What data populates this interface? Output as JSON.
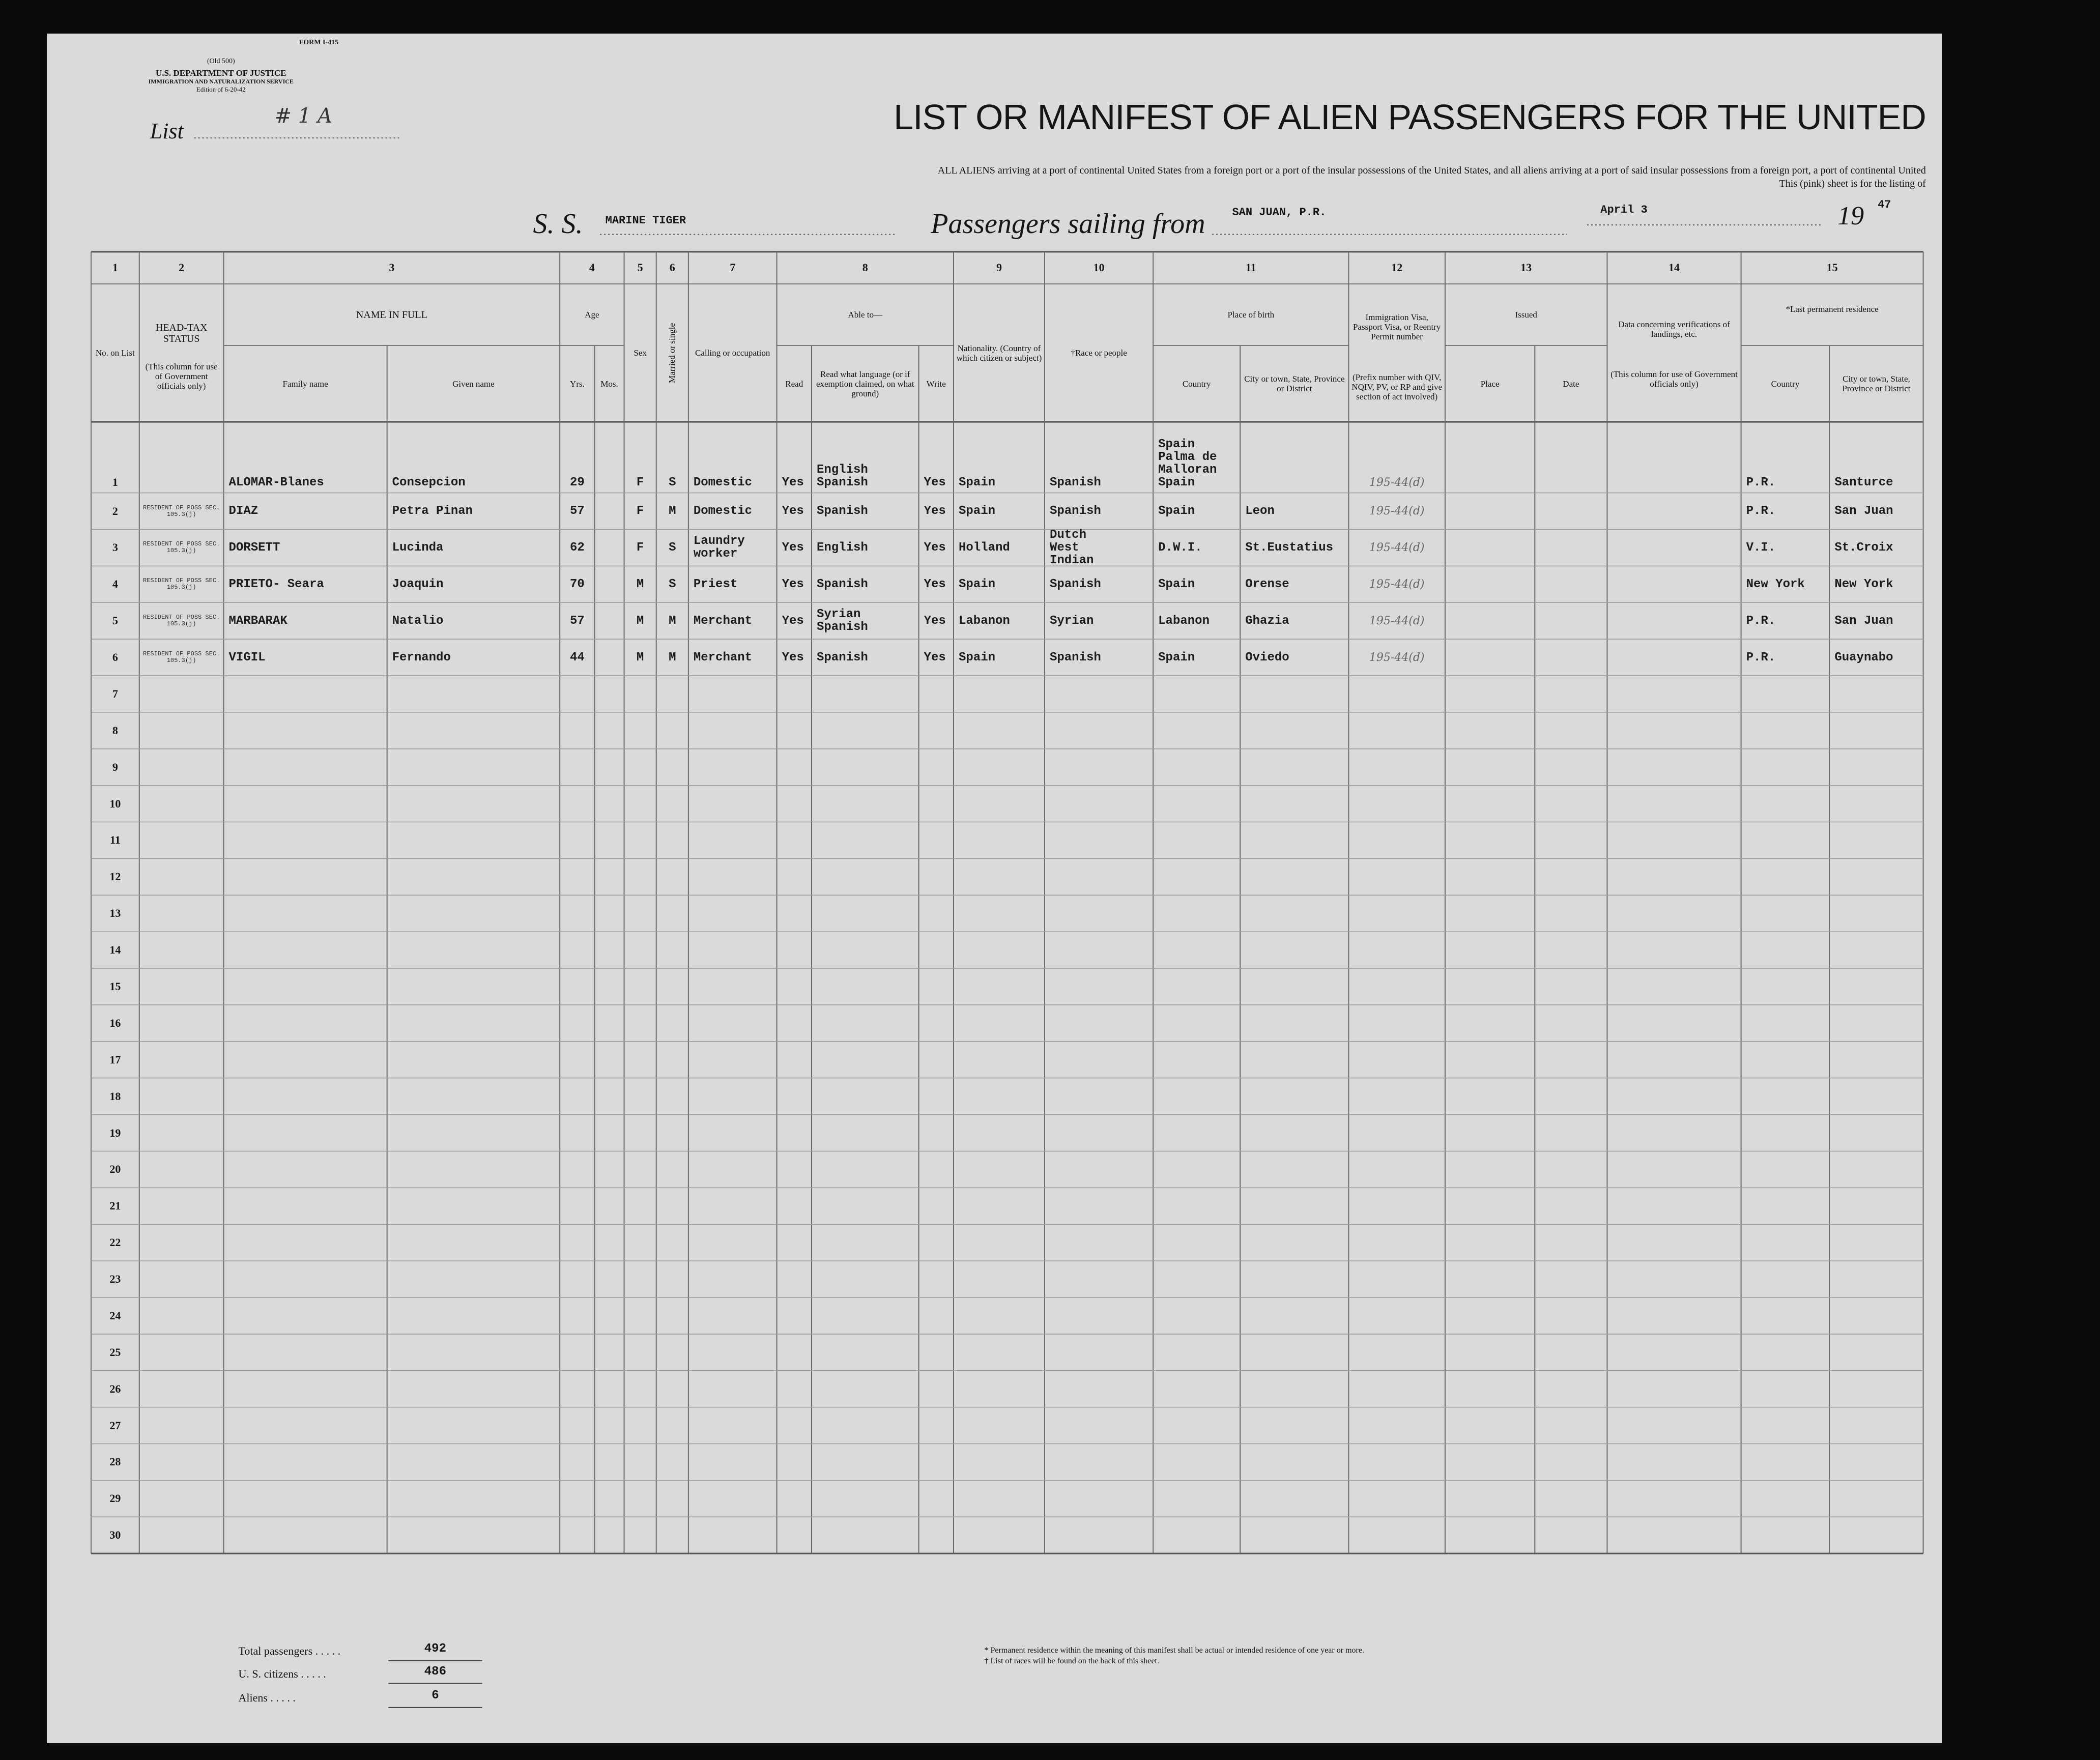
{
  "header": {
    "form_lines": [
      "FORM I-415",
      "(Old 500)",
      "U.S. DEPARTMENT OF JUSTICE",
      "IMMIGRATION AND NATURALIZATION SERVICE",
      "Edition of 6-20-42"
    ],
    "list_label": "List",
    "list_number": "# 1 A",
    "title": "LIST OR MANIFEST OF ALIEN PASSENGERS FOR THE UNITED",
    "subtitle": [
      "ALL ALIENS arriving at a port of continental United States from a foreign port or a port of the insular possessions of the United States, and all aliens arriving at a port of said insular possessions from a foreign port, a port of continental United",
      "This (pink) sheet is for the listing of"
    ],
    "ship_label": "S. S.",
    "ship_name": "MARINE TIGER",
    "sailing_label": "Passengers sailing from",
    "port": "SAN JUAN, P.R.",
    "date": "April 3",
    "year_prefix": "19",
    "year_suffix": "47"
  },
  "table": {
    "column_numbers": [
      1,
      2,
      3,
      4,
      5,
      6,
      7,
      8,
      9,
      10,
      11,
      12,
      13,
      14,
      15
    ],
    "headers": {
      "no_on_list": "No. on List",
      "head_tax": {
        "title": "HEAD-TAX STATUS",
        "note": "(This column for use of Government officials only)"
      },
      "name": {
        "title": "NAME IN FULL",
        "family": "Family name",
        "given": "Given name"
      },
      "age": {
        "title": "Age",
        "years": "Yrs.",
        "months": "Mos."
      },
      "sex": "Sex",
      "marital": "Married or single",
      "calling": "Calling or occupation",
      "able": {
        "title": "Able to—",
        "read": "Read",
        "language": "Read what language (or if exemption claimed, on what ground)",
        "write": "Write"
      },
      "nationality": "Nationality. (Country of which citizen or subject)",
      "race": "†Race or people",
      "birth": {
        "title": "Place of birth",
        "country": "Country",
        "city": "City or town, State, Province or District"
      },
      "visa": {
        "title": "Immigration Visa, Passport Visa, or Reentry Permit number",
        "note": "(Prefix number with QIV, NQIV, PV, or RP and give section of act involved)"
      },
      "issued": {
        "title": "Issued",
        "place": "Place",
        "date": "Date"
      },
      "verification": {
        "title": "Data concerning verifications of landings, etc.",
        "note": "(This column for use of Government officials only)"
      },
      "residence": {
        "title": "*Last permanent residence",
        "country": "Country",
        "city": "City or town, State, Province or District"
      }
    },
    "rows": [
      {
        "no": 1,
        "family": "ALOMAR-Blanes",
        "given": "Consepcion",
        "age": 29,
        "sex": "F",
        "marital": "S",
        "calling": "Domestic",
        "read": "Yes",
        "language": "English Spanish",
        "write": "Yes",
        "nationality": "Spain",
        "race": "Spanish",
        "birth_country": "Spain Palma de Malloran Spain",
        "visa": "195-44(d)",
        "res_country": "P.R.",
        "res_city": "Santurce"
      },
      {
        "no": 2,
        "head_tax": "RESIDENT OF POSS SEC. 105.3(j)",
        "family": "DIAZ",
        "given": "Petra Pinan",
        "age": 57,
        "sex": "F",
        "marital": "M",
        "calling": "Domestic",
        "read": "Yes",
        "language": "Spanish",
        "write": "Yes",
        "nationality": "Spain",
        "race": "Spanish",
        "birth_country": "Spain",
        "birth_city": "Leon",
        "visa": "195-44(d)",
        "res_country": "P.R.",
        "res_city": "San Juan"
      },
      {
        "no": 3,
        "head_tax": "RESIDENT OF POSS SEC. 105.3(j)",
        "family": "DORSETT",
        "given": "Lucinda",
        "age": 62,
        "sex": "F",
        "marital": "S",
        "calling": "Laundry worker",
        "read": "Yes",
        "language": "English",
        "write": "Yes",
        "nationality": "Holland",
        "race": "Dutch West Indian",
        "birth_country": "D.W.I.",
        "birth_city": "St.Eustatius",
        "visa": "195-44(d)",
        "res_country": "V.I.",
        "res_city": "St.Croix"
      },
      {
        "no": 4,
        "head_tax": "RESIDENT OF POSS SEC. 105.3(j)",
        "family": "PRIETO- Seara",
        "given": "Joaquin",
        "age": 70,
        "sex": "M",
        "marital": "S",
        "calling": "Priest",
        "read": "Yes",
        "language": "Spanish",
        "write": "Yes",
        "nationality": "Spain",
        "race": "Spanish",
        "birth_country": "Spain",
        "birth_city": "Orense",
        "visa": "195-44(d)",
        "res_country": "New York",
        "res_city": "New York"
      },
      {
        "no": 5,
        "head_tax": "RESIDENT OF POSS SEC. 105.3(j)",
        "family": "MARBARAK",
        "given": "Natalio",
        "age": 57,
        "sex": "M",
        "marital": "M",
        "calling": "Merchant",
        "read": "Yes",
        "language": "Syrian Spanish",
        "write": "Yes",
        "nationality": "Labanon",
        "race": "Syrian",
        "birth_country": "Labanon",
        "birth_city": "Ghazia",
        "visa": "195-44(d)",
        "res_country": "P.R.",
        "res_city": "San Juan"
      },
      {
        "no": 6,
        "head_tax": "RESIDENT OF POSS SEC. 105.3(j)",
        "family": "VIGIL",
        "given": "Fernando",
        "age": 44,
        "sex": "M",
        "marital": "M",
        "calling": "Merchant",
        "read": "Yes",
        "language": "Spanish",
        "write": "Yes",
        "nationality": "Spain",
        "race": "Spanish",
        "birth_country": "Spain",
        "birth_city": "Oviedo",
        "visa": "195-44(d)",
        "res_country": "P.R.",
        "res_city": "Guaynabo"
      },
      {
        "no": 7
      },
      {
        "no": 8
      },
      {
        "no": 9
      },
      {
        "no": 10
      },
      {
        "no": 11
      },
      {
        "no": 12
      },
      {
        "no": 13
      },
      {
        "no": 14
      },
      {
        "no": 15
      },
      {
        "no": 16
      },
      {
        "no": 17
      },
      {
        "no": 18
      },
      {
        "no": 19
      },
      {
        "no": 20
      },
      {
        "no": 21
      },
      {
        "no": 22
      },
      {
        "no": 23
      },
      {
        "no": 24
      },
      {
        "no": 25
      },
      {
        "no": 26
      },
      {
        "no": 27
      },
      {
        "no": 28
      },
      {
        "no": 29
      },
      {
        "no": 30
      }
    ]
  },
  "footer": {
    "totals": [
      {
        "label": "Total passengers . . . . .",
        "value": 492
      },
      {
        "label": "U. S. citizens . . . . .",
        "value": 486
      },
      {
        "label": "Aliens . . . . .",
        "value": 6
      }
    ],
    "notes": [
      "* Permanent residence within the meaning of this manifest shall be actual or intended residence of one year or more.",
      "† List of races will be found on the back of this sheet."
    ]
  }
}
